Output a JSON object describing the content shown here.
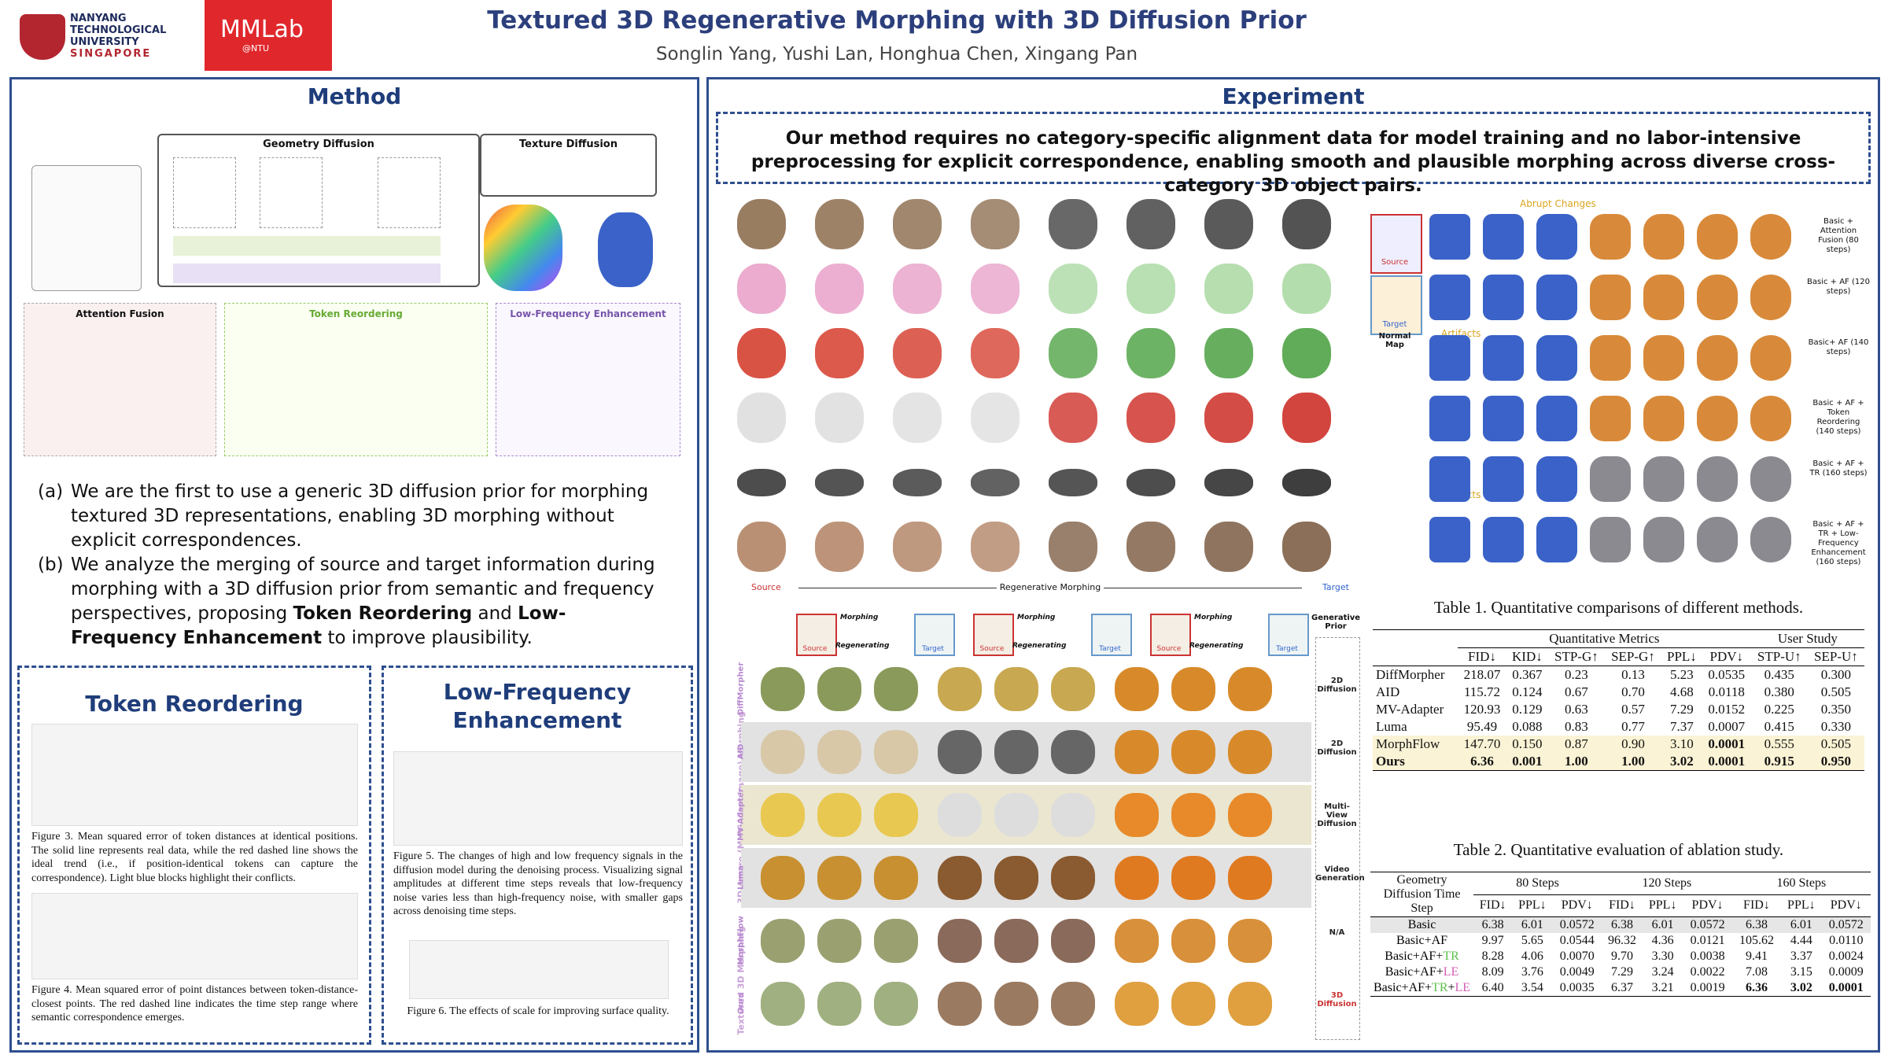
{
  "header": {
    "logo_ntu": [
      "NANYANG",
      "TECHNOLOGICAL",
      "UNIVERSITY",
      "SINGAPORE"
    ],
    "logo_lab": "MMLab",
    "logo_lab_sub": "@NTU",
    "title": "Textured 3D Regenerative Morphing with 3D Diffusion Prior",
    "authors": "Songlin Yang, Yushi Lan, Honghua Chen, Xingang Pan"
  },
  "method": {
    "heading": "Method",
    "figure_labels": [
      "Geometry Diffusion",
      "Texture Diffusion",
      "Attention Fusion",
      "Token Reordering",
      "Low-Frequency Enhancement"
    ],
    "item_a": {
      "marker": "(a)",
      "text": "We are the first to use a generic 3D diffusion prior for morphing textured 3D representations, enabling 3D morphing without explicit correspondences."
    },
    "item_b": {
      "marker": "(b)",
      "parts": [
        {
          "text": "We analyze the merging of source and target information during morphing with a 3D diffusion prior from semantic and frequency perspectives, proposing ",
          "bold": false
        },
        {
          "text": "Token Reordering",
          "bold": true
        },
        {
          "text": " and ",
          "bold": false
        },
        {
          "text": "Low-Frequency Enhancement",
          "bold": true
        },
        {
          "text": " to improve plausibility.",
          "bold": false
        }
      ]
    }
  },
  "token_reordering": {
    "heading": "Token Reordering",
    "fig3_caption": "Figure 3. Mean squared error of token distances at identical positions. The solid line represents real data, while the red dashed line shows the ideal trend (i.e., if position-identical tokens can capture the correspondence). Light blue blocks highlight their conflicts.",
    "fig4_caption": "Figure 4. Mean squared error of point distances between token-distance-closest points. The red dashed line indicates the time step range where semantic correspondence emerges."
  },
  "low_frequency": {
    "heading": "Low-Frequency Enhancement",
    "fig5_caption": "Figure 5. The changes of high and low frequency signals in the diffusion model during the denoising process. Visualizing signal amplitudes at different time steps reveals that low-frequency noise varies less than high-frequency noise, with smaller gaps across denoising time steps.",
    "fig6_caption": "Figure 6. The effects of scale for improving surface quality."
  },
  "experiment": {
    "heading": "Experiment",
    "statement": "Our method requires no category-specific alignment data for model training and no labor-intensive preprocessing for explicit correspondence, enabling smooth and plausible morphing across diverse cross-category 3D object pairs.",
    "morph_labels": {
      "source": "Source",
      "middle": "Regenerative Morphing",
      "target": "Target"
    },
    "ablation_labels": {
      "abrupt": "Abrupt Changes",
      "artifacts": "Artifacts",
      "source": "Source",
      "target": "Target",
      "normal_map": "Normal Map",
      "rows": [
        "Basic + Attention Fusion (80 steps)",
        "Basic + AF (120 steps)",
        "Basic+ AF (140 steps)",
        "Basic + AF + Token Reordering (140 steps)",
        "Basic + AF + TR (160 steps)",
        "Basic + AF + TR + Low-Frequency Enhancement (160 steps)"
      ]
    },
    "comparison": {
      "source": "Source",
      "target": "Target",
      "morphing": "Morphing",
      "regenerating": "Regenerating",
      "prior_header": "Generative Prior",
      "group_a": "3D-Aware (Multi-View Image) Morphing",
      "group_b": "Textured 3D Morphing",
      "rows": [
        {
          "method": "DiffMorpher",
          "prior": "2D Diffusion"
        },
        {
          "method": "AID",
          "prior": "2D Diffusion"
        },
        {
          "method": "MV-Adapter",
          "prior": "Multi-View Diffusion"
        },
        {
          "method": "Luma",
          "prior": "Video Generation"
        },
        {
          "method": "MorphFlow",
          "prior": "N/A"
        },
        {
          "method": "Ours",
          "prior": "3D Diffusion"
        }
      ]
    },
    "table1": {
      "caption": "Table 1. Quantitative comparisons of different methods.",
      "groups": [
        "Quantitative Metrics",
        "User Study"
      ],
      "columns": [
        "FID↓",
        "KID↓",
        "STP-G↑",
        "SEP-G↑",
        "PPL↓",
        "PDV↓",
        "STP-U↑",
        "SEP-U↑"
      ],
      "rows": [
        {
          "label": "DiffMorpher",
          "cells": [
            "218.07",
            "0.367",
            "0.23",
            "0.13",
            "5.23",
            "0.0535",
            "0.435",
            "0.300"
          ],
          "bold": []
        },
        {
          "label": "AID",
          "cells": [
            "115.72",
            "0.124",
            "0.67",
            "0.70",
            "4.68",
            "0.0118",
            "0.380",
            "0.505"
          ],
          "bold": []
        },
        {
          "label": "MV-Adapter",
          "cells": [
            "120.93",
            "0.129",
            "0.63",
            "0.57",
            "7.29",
            "0.0152",
            "0.225",
            "0.350"
          ],
          "bold": []
        },
        {
          "label": "Luma",
          "cells": [
            "95.49",
            "0.088",
            "0.83",
            "0.77",
            "7.37",
            "0.0007",
            "0.415",
            "0.330"
          ],
          "bold": []
        },
        {
          "label": "MorphFlow",
          "cells": [
            "147.70",
            "0.150",
            "0.87",
            "0.90",
            "3.10",
            "0.0001",
            "0.555",
            "0.505"
          ],
          "bold": [
            5
          ],
          "highlight": "#fbf3d5"
        },
        {
          "label": "Ours",
          "cells": [
            "6.36",
            "0.001",
            "1.00",
            "1.00",
            "3.02",
            "0.0001",
            "0.915",
            "0.950"
          ],
          "bold": [
            0,
            1,
            2,
            3,
            4,
            5,
            6,
            7
          ],
          "highlight": "#fbf3d5"
        }
      ]
    },
    "table2": {
      "caption": "Table 2. Quantitative evaluation of ablation study.",
      "corner": "Geometry Diffusion Time Step",
      "groups": [
        "80 Steps",
        "120 Steps",
        "160 Steps"
      ],
      "columns": [
        "FID↓",
        "PPL↓",
        "PDV↓"
      ],
      "rows": [
        {
          "label": [
            {
              "text": "Basic",
              "color": "#000000"
            }
          ],
          "cells": [
            "6.38",
            "6.01",
            "0.0572",
            "6.38",
            "6.01",
            "0.0572",
            "6.38",
            "6.01",
            "0.0572"
          ],
          "bold": [],
          "highlight": "#e6e6e6"
        },
        {
          "label": [
            {
              "text": "Basic+AF",
              "color": "#000000"
            }
          ],
          "cells": [
            "9.97",
            "5.65",
            "0.0544",
            "96.32",
            "4.36",
            "0.0121",
            "105.62",
            "4.44",
            "0.0110"
          ],
          "bold": []
        },
        {
          "label": [
            {
              "text": "Basic+AF+",
              "color": "#000000"
            },
            {
              "text": "TR",
              "color": "#5cbf4a"
            }
          ],
          "cells": [
            "8.28",
            "4.06",
            "0.0070",
            "9.70",
            "3.30",
            "0.0038",
            "9.41",
            "3.37",
            "0.0024"
          ],
          "bold": []
        },
        {
          "label": [
            {
              "text": "Basic+AF+",
              "color": "#000000"
            },
            {
              "text": "LE",
              "color": "#d45fb4"
            }
          ],
          "cells": [
            "8.09",
            "3.76",
            "0.0049",
            "7.29",
            "3.24",
            "0.0022",
            "7.08",
            "3.15",
            "0.0009"
          ],
          "bold": []
        },
        {
          "label": [
            {
              "text": "Basic+AF+",
              "color": "#000000"
            },
            {
              "text": "TR",
              "color": "#5cbf4a"
            },
            {
              "text": "+",
              "color": "#000000"
            },
            {
              "text": "LE",
              "color": "#d45fb4"
            }
          ],
          "cells": [
            "6.40",
            "3.54",
            "0.0035",
            "6.37",
            "3.21",
            "0.0019",
            "6.36",
            "3.02",
            "0.0001"
          ],
          "bold": [
            6,
            7,
            8
          ]
        }
      ]
    }
  }
}
